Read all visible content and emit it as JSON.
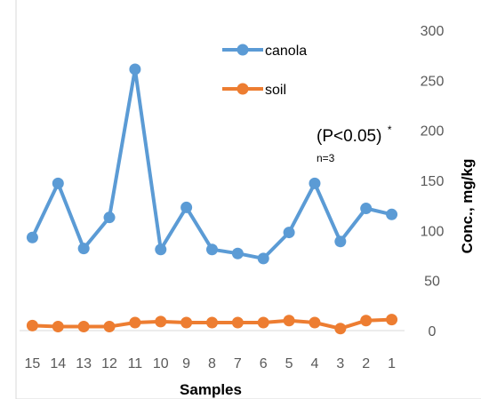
{
  "chart_data": {
    "type": "line",
    "categories": [
      "15",
      "14",
      "13",
      "12",
      "11",
      "10",
      "9",
      "8",
      "7",
      "6",
      "5",
      "4",
      "3",
      "2",
      "1"
    ],
    "series": [
      {
        "name": "canola",
        "color": "#5b9bd5",
        "values": [
          93,
          147,
          82,
          113,
          261,
          81,
          123,
          81,
          77,
          72,
          98,
          147,
          89,
          122,
          116
        ]
      },
      {
        "name": "soil",
        "color": "#ed7d31",
        "values": [
          5,
          4,
          4,
          4,
          8,
          9,
          8,
          8,
          8,
          8,
          10,
          8,
          2,
          10,
          11
        ]
      }
    ],
    "xlabel": "Samples",
    "ylabel": "Conc., mg/kg",
    "ylim": [
      0,
      300
    ],
    "yticks": [
      0,
      50,
      100,
      150,
      200,
      250,
      300
    ],
    "y_axis_side": "right",
    "grid": false,
    "legend_position": "top-center",
    "annotations": {
      "pvalue": "(P<0.05)",
      "pvalue_mark": "*",
      "n": "n=3"
    }
  }
}
